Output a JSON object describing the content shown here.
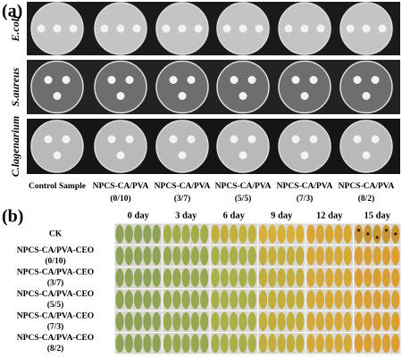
{
  "panel_a": {
    "label": "(a)",
    "row_labels": [
      "E.coli",
      "S.aureus",
      "C.lagenarium"
    ],
    "column_labels": [
      [
        "Control Sample"
      ],
      [
        "NPCS-CA/PVA",
        "(0/10)"
      ],
      [
        "NPCS-CA/PVA",
        "(3/7)"
      ],
      [
        "NPCS-CA/PVA",
        "(5/5)"
      ],
      [
        "NPCS-CA/PVA",
        "(7/3)"
      ],
      [
        "NPCS-CA/PVA",
        "(8/2)"
      ]
    ]
  },
  "panel_b": {
    "label": "(b)",
    "day_labels": [
      "0 day",
      "3 day",
      "6 day",
      "9 day",
      "12 day",
      "15 day"
    ],
    "row_labels": [
      [
        "CK"
      ],
      [
        "NPCS-CA/PVA-CEO",
        "(0/10)"
      ],
      [
        "NPCS-CA/PVA-CEO",
        "(3/7)"
      ],
      [
        "NPCS-CA/PVA-CEO",
        "(5/5)"
      ],
      [
        "NPCS-CA/PVA-CEO",
        "(7/3)"
      ],
      [
        "NPCS-CA/PVA-CEO",
        "(8/2)"
      ]
    ]
  }
}
